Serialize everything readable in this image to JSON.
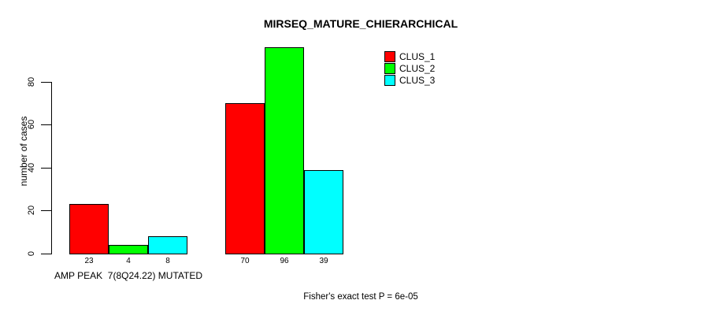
{
  "chart_data": {
    "type": "bar",
    "title": "MIRSEQ_MATURE_CHIERARCHICAL",
    "ylabel": "number of cases",
    "xlabel": "",
    "ylim": [
      0,
      96
    ],
    "yticks": [
      0,
      20,
      40,
      60,
      80
    ],
    "grid": false,
    "legend_position": "top-right",
    "categories": [
      "AMP PEAK  7(8Q24.22) MUTATED",
      ""
    ],
    "series": [
      {
        "name": "CLUS_1",
        "color": "#ff0000",
        "values": [
          23,
          70
        ]
      },
      {
        "name": "CLUS_2",
        "color": "#00ff00",
        "values": [
          4,
          96
        ]
      },
      {
        "name": "CLUS_3",
        "color": "#00ffff",
        "values": [
          8,
          39
        ]
      }
    ],
    "bar_value_labels": [
      [
        "23",
        "4",
        "8"
      ],
      [
        "70",
        "96",
        "39"
      ]
    ],
    "annotation": "Fisher's exact test P = 6e-05",
    "axis_color": "#000000",
    "text_color": "#000000"
  }
}
